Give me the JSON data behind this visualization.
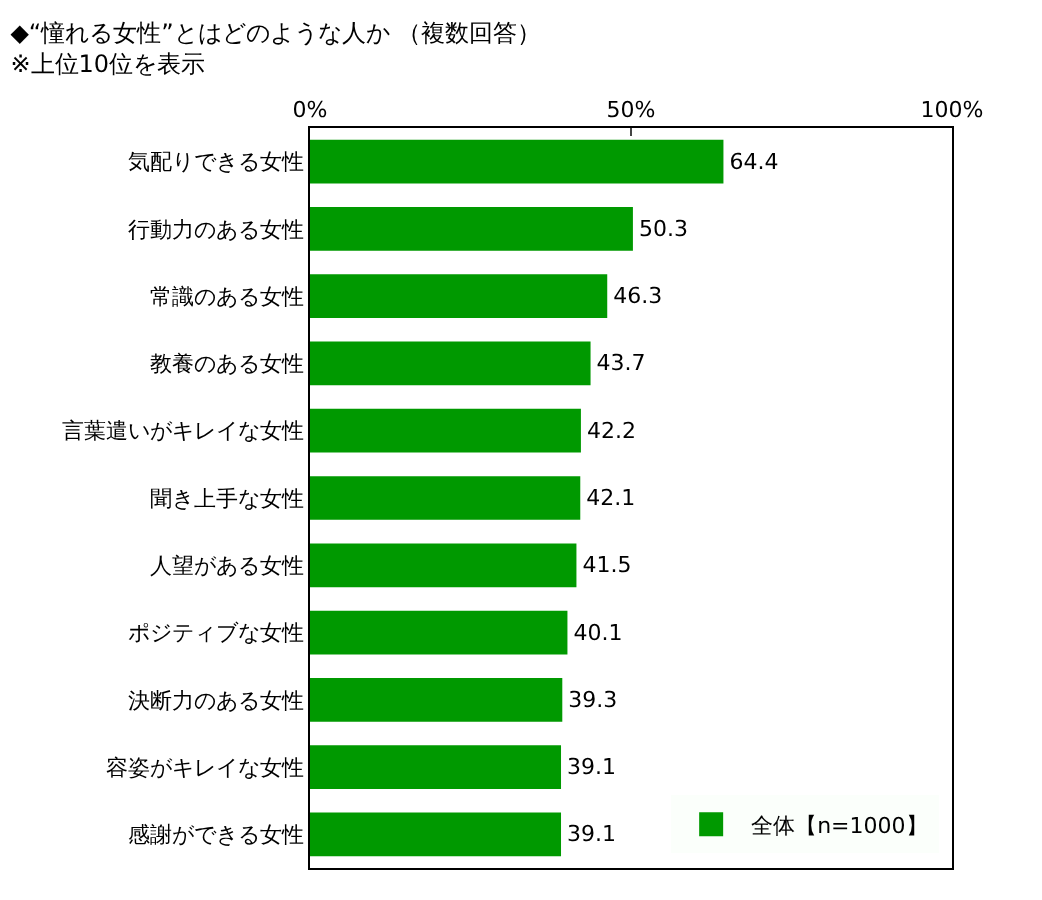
{
  "chart_data": {
    "type": "bar",
    "orientation": "horizontal",
    "title": "◆“憧れる女性”とはどのような人か （複数回答）",
    "subtitle": "※上位10位を表示",
    "categories": [
      "気配りできる女性",
      "行動力のある女性",
      "常識のある女性",
      "教養のある女性",
      "言葉遣いがキレイな女性",
      "聞き上手な女性",
      "人望がある女性",
      "ポジティブな女性",
      "決断力のある女性",
      "容姿がキレイな女性",
      "感謝ができる女性"
    ],
    "series": [
      {
        "name": "全体【n=1000】",
        "color": "#009900",
        "values": [
          64.4,
          50.3,
          46.3,
          43.7,
          42.2,
          42.1,
          41.5,
          40.1,
          39.3,
          39.1,
          39.1
        ]
      }
    ],
    "xlim": [
      0,
      100
    ],
    "xticks": [
      {
        "value": 0,
        "label": "0%"
      },
      {
        "value": 50,
        "label": "50%"
      },
      {
        "value": 100,
        "label": "100%"
      }
    ],
    "data_labels": true,
    "legend": "bottom right",
    "grid": false
  }
}
